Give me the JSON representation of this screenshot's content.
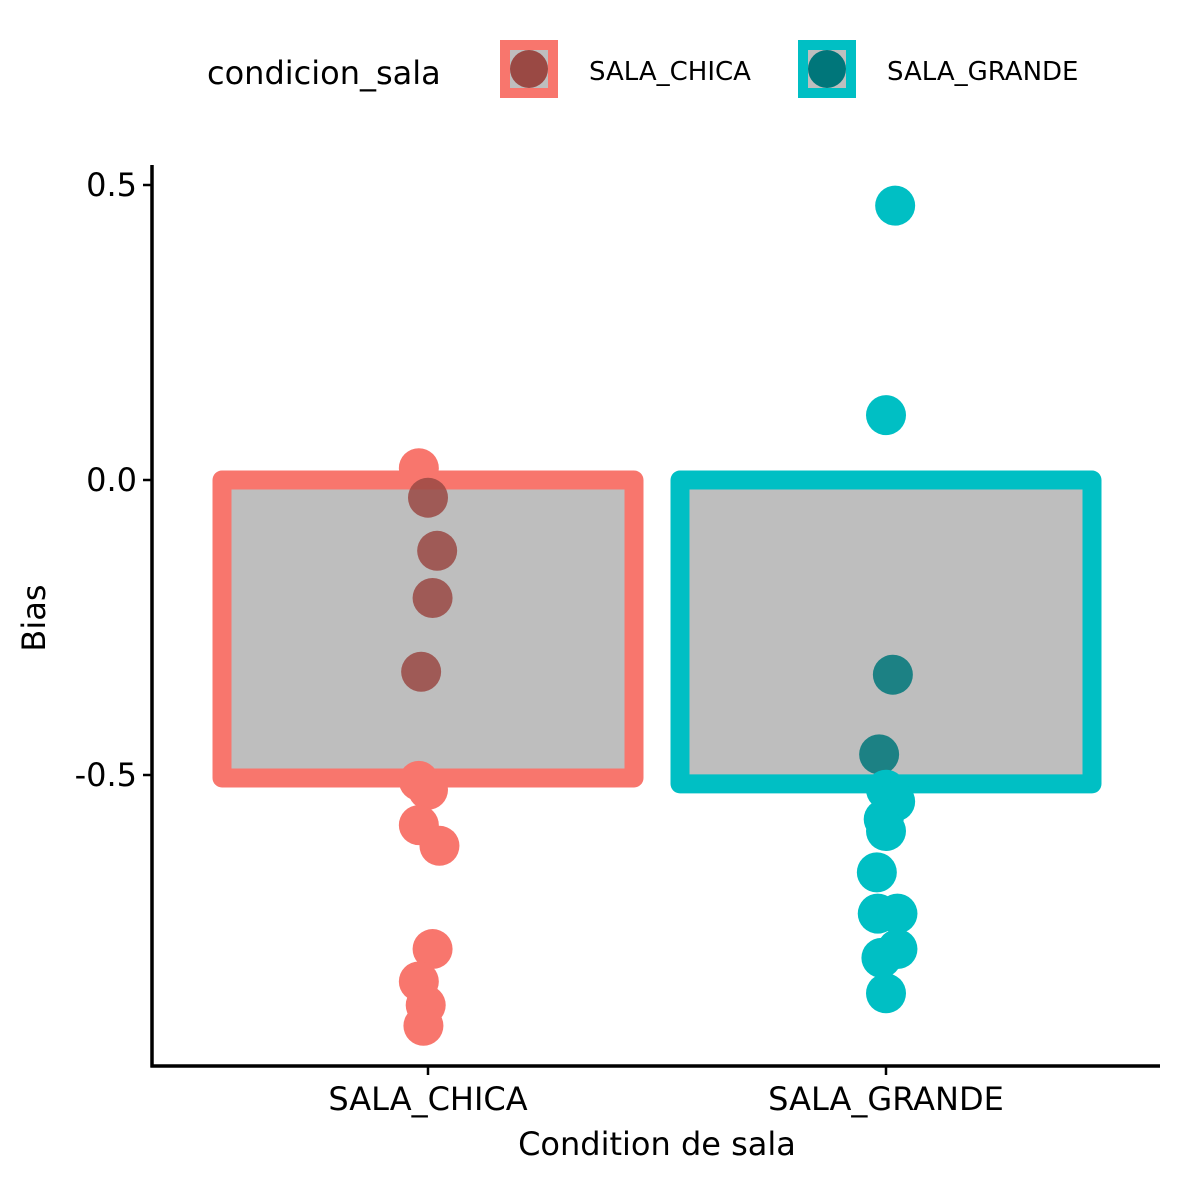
{
  "chart_data": {
    "type": "bar",
    "title": "",
    "xlabel": "Condition de sala",
    "ylabel": "Bias",
    "categories": [
      "SALA_CHICA",
      "SALA_GRANDE"
    ],
    "bar_values": [
      -0.505,
      -0.515
    ],
    "bar_fill": "#bebebe",
    "colors": {
      "SALA_CHICA": "#f8766d",
      "SALA_GRANDE": "#00bfc4"
    },
    "ylim": [
      -0.985,
      0.535
    ],
    "yticks": [
      {
        "value": 0.5,
        "label": "0.5"
      },
      {
        "value": 0.0,
        "label": "0.0"
      },
      {
        "value": -0.5,
        "label": "-0.5"
      }
    ],
    "points": [
      {
        "group": "SALA_CHICA",
        "values": [
          0.02,
          -0.03,
          -0.12,
          -0.2,
          -0.325,
          -0.51,
          -0.525,
          -0.585,
          -0.62,
          -0.795,
          -0.85,
          -0.89,
          -0.925
        ],
        "offsets": [
          -0.02,
          0.0,
          0.02,
          0.01,
          -0.015,
          -0.02,
          0.0,
          -0.02,
          0.025,
          0.01,
          -0.02,
          -0.005,
          -0.01
        ]
      },
      {
        "group": "SALA_GRANDE",
        "values": [
          0.465,
          0.11,
          -0.33,
          -0.465,
          -0.525,
          -0.545,
          -0.575,
          -0.595,
          -0.665,
          -0.735,
          -0.735,
          -0.795,
          -0.81,
          -0.87
        ],
        "offsets": [
          0.02,
          0.0,
          0.015,
          -0.015,
          0.0,
          0.02,
          -0.005,
          0.0,
          -0.02,
          -0.018,
          0.025,
          0.025,
          -0.01,
          0.0
        ]
      }
    ],
    "grid": false,
    "legend_position": "top"
  },
  "legend": {
    "title": "condicion_sala",
    "items": [
      {
        "label": "SALA_CHICA",
        "color": "#f8766d"
      },
      {
        "label": "SALA_GRANDE",
        "color": "#00bfc4"
      }
    ]
  }
}
